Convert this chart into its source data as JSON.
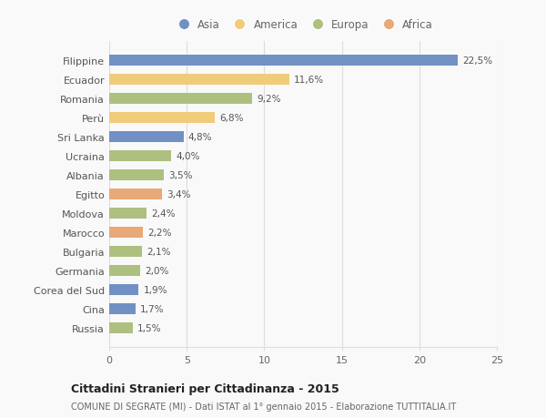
{
  "categories": [
    "Filippine",
    "Ecuador",
    "Romania",
    "Perù",
    "Sri Lanka",
    "Ucraina",
    "Albania",
    "Egitto",
    "Moldova",
    "Marocco",
    "Bulgaria",
    "Germania",
    "Corea del Sud",
    "Cina",
    "Russia"
  ],
  "values": [
    22.5,
    11.6,
    9.2,
    6.8,
    4.8,
    4.0,
    3.5,
    3.4,
    2.4,
    2.2,
    2.1,
    2.0,
    1.9,
    1.7,
    1.5
  ],
  "labels": [
    "22,5%",
    "11,6%",
    "9,2%",
    "6,8%",
    "4,8%",
    "4,0%",
    "3,5%",
    "3,4%",
    "2,4%",
    "2,2%",
    "2,1%",
    "2,0%",
    "1,9%",
    "1,7%",
    "1,5%"
  ],
  "continents": [
    "Asia",
    "America",
    "Europa",
    "America",
    "Asia",
    "Europa",
    "Europa",
    "Africa",
    "Europa",
    "Africa",
    "Europa",
    "Europa",
    "Asia",
    "Asia",
    "Europa"
  ],
  "colors": {
    "Asia": "#7191c4",
    "America": "#f0cc7a",
    "Europa": "#adc080",
    "Africa": "#e8a878"
  },
  "xlim": [
    0,
    25
  ],
  "xticks": [
    0,
    5,
    10,
    15,
    20,
    25
  ],
  "title": "Cittadini Stranieri per Cittadinanza - 2015",
  "subtitle": "COMUNE DI SEGRATE (MI) - Dati ISTAT al 1° gennaio 2015 - Elaborazione TUTTITALIA.IT",
  "bg_color": "#f9f9f9",
  "grid_color": "#dddddd",
  "bar_height": 0.55,
  "legend_entries": [
    "Asia",
    "America",
    "Europa",
    "Africa"
  ]
}
